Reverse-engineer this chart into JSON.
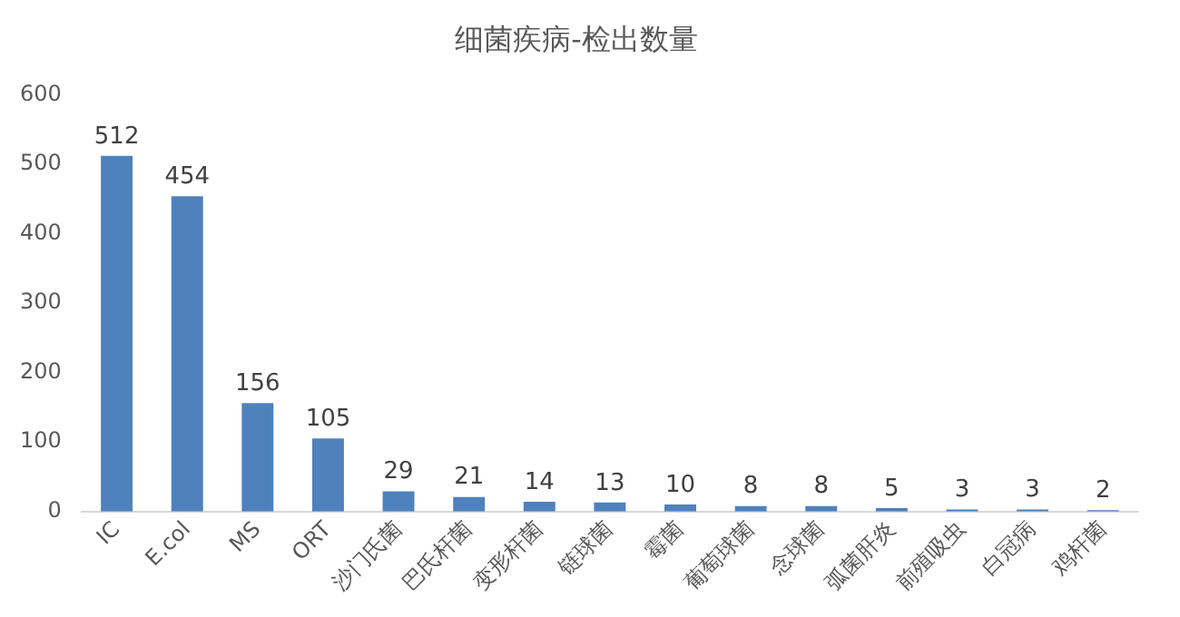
{
  "chart_data": {
    "type": "bar",
    "title": "细菌疾病-检出数量",
    "categories": [
      "IC",
      "E.col",
      "MS",
      "ORT",
      "沙门氏菌",
      "巴氏杆菌",
      "变形杆菌",
      "链球菌",
      "霉菌",
      "葡萄球菌",
      "念球菌",
      "弧菌肝炎",
      "前殖吸虫",
      "白冠病",
      "鸡杆菌"
    ],
    "values": [
      512,
      454,
      156,
      105,
      29,
      21,
      14,
      13,
      10,
      8,
      8,
      5,
      3,
      3,
      2
    ],
    "color": "#4f81bd",
    "ylim": [
      0,
      600
    ],
    "yticks": [
      0,
      100,
      200,
      300,
      400,
      500,
      600
    ],
    "grid": false,
    "data_labels": true
  }
}
